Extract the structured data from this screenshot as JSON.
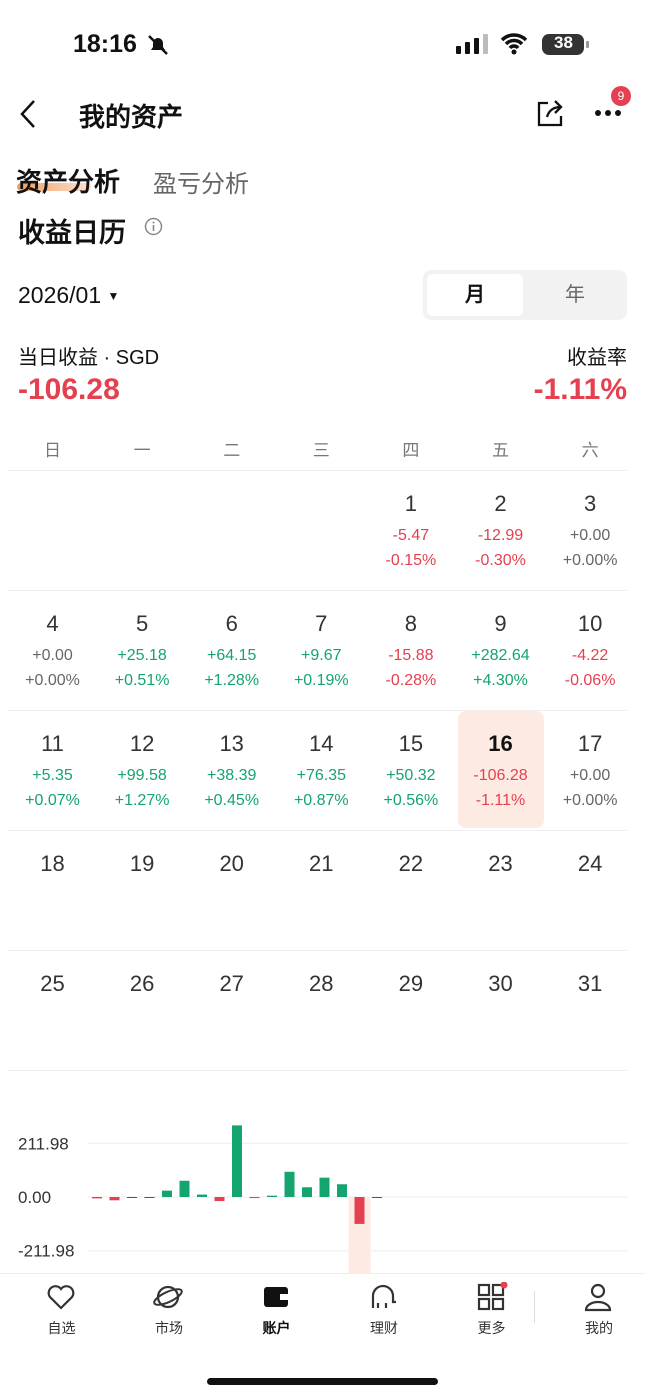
{
  "status_bar": {
    "time": "18:16",
    "battery": "38"
  },
  "header": {
    "title": "我的资产",
    "badge": "9"
  },
  "tabs": [
    "资产分析",
    "盈亏分析"
  ],
  "section_title": "收益日历",
  "month": "2026/01",
  "toggle": [
    "月",
    "年"
  ],
  "summary": {
    "daily_label": "当日收益 · SGD",
    "daily_value": "-106.28",
    "rate_label": "收益率",
    "rate_value": "-1.11%"
  },
  "weekdays": [
    "日",
    "一",
    "二",
    "三",
    "四",
    "五",
    "六"
  ],
  "days": [
    {
      "day": "1",
      "pnl": "-5.47",
      "pct": "-0.15%"
    },
    {
      "day": "2",
      "pnl": "-12.99",
      "pct": "-0.30%"
    },
    {
      "day": "3",
      "pnl": "+0.00",
      "pct": "+0.00%"
    },
    {
      "day": "4",
      "pnl": "+0.00",
      "pct": "+0.00%"
    },
    {
      "day": "5",
      "pnl": "+25.18",
      "pct": "+0.51%"
    },
    {
      "day": "6",
      "pnl": "+64.15",
      "pct": "+1.28%"
    },
    {
      "day": "7",
      "pnl": "+9.67",
      "pct": "+0.19%"
    },
    {
      "day": "8",
      "pnl": "-15.88",
      "pct": "-0.28%"
    },
    {
      "day": "9",
      "pnl": "+282.64",
      "pct": "+4.30%"
    },
    {
      "day": "10",
      "pnl": "-4.22",
      "pct": "-0.06%"
    },
    {
      "day": "11",
      "pnl": "+5.35",
      "pct": "+0.07%"
    },
    {
      "day": "12",
      "pnl": "+99.58",
      "pct": "+1.27%"
    },
    {
      "day": "13",
      "pnl": "+38.39",
      "pct": "+0.45%"
    },
    {
      "day": "14",
      "pnl": "+76.35",
      "pct": "+0.87%"
    },
    {
      "day": "15",
      "pnl": "+50.32",
      "pct": "+0.56%"
    },
    {
      "day": "16",
      "pnl": "-106.28",
      "pct": "-1.11%"
    },
    {
      "day": "17",
      "pnl": "+0.00",
      "pct": "+0.00%"
    },
    {
      "day": "18"
    },
    {
      "day": "19"
    },
    {
      "day": "20"
    },
    {
      "day": "21"
    },
    {
      "day": "22"
    },
    {
      "day": "23"
    },
    {
      "day": "24"
    },
    {
      "day": "25"
    },
    {
      "day": "26"
    },
    {
      "day": "27"
    },
    {
      "day": "28"
    },
    {
      "day": "29"
    },
    {
      "day": "30"
    },
    {
      "day": "31"
    }
  ],
  "chart_data": {
    "type": "bar",
    "values": [
      -5.47,
      -12.99,
      0,
      0,
      25.18,
      64.15,
      9.67,
      -15.88,
      282.64,
      -4.22,
      5.35,
      99.58,
      38.39,
      76.35,
      50.32,
      -106.28,
      0
    ],
    "ylim": [
      -300,
      300
    ],
    "yticks": [
      {
        "value": 211.98,
        "label": "211.98"
      },
      {
        "value": 0,
        "label": "0.00"
      },
      {
        "value": -211.98,
        "label": "-211.98"
      }
    ],
    "up_color": "#14a46e",
    "down_color": "#e5404f",
    "grid": true
  },
  "nav": [
    "自选",
    "市场",
    "账户",
    "理财",
    "更多",
    "我的"
  ]
}
